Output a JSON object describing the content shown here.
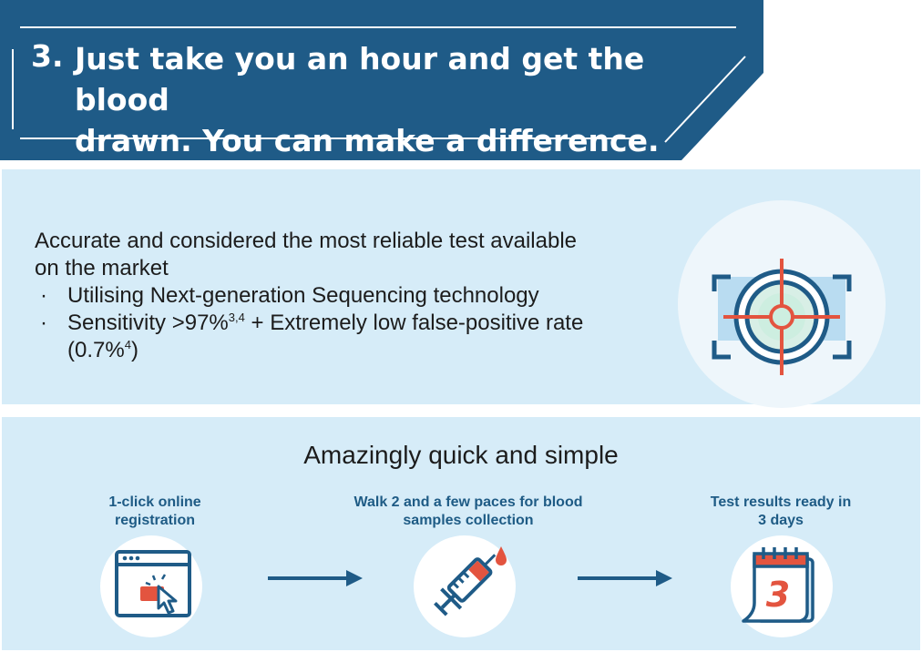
{
  "header": {
    "number": "3.",
    "title_line1": "Just take you an hour and get the blood",
    "title_line2": "drawn. You can make a difference."
  },
  "accuracy": {
    "lead": "Accurate and considered the most reliable test available on the market",
    "bullet_marker": "·",
    "bullet1": "Utilising Next-generation Sequencing technology",
    "bullet2_text": "Sensitivity >97%",
    "bullet2_sup": "3,4",
    "bullet2_rest": " + Extremely low false-positive rate (0.7%",
    "bullet2_sup2": "4",
    "bullet2_end": ")",
    "icon": "target-icon"
  },
  "process": {
    "title": "Amazingly quick and simple",
    "steps": [
      {
        "label_line1": "1-click online",
        "label_line2": "registration",
        "icon": "browser-click-icon"
      },
      {
        "label_line1": "Walk 2 and a few paces for blood",
        "label_line2": "samples collection",
        "icon": "syringe-icon"
      },
      {
        "label_line1": "Test results ready in",
        "label_line2": "3 days",
        "icon": "calendar-icon",
        "calendar_number": "3"
      }
    ]
  },
  "colors": {
    "banner": "#1f5b87",
    "panel": "#d6ecf8",
    "accent_red": "#e3543f",
    "label_blue": "#1e5b85"
  }
}
